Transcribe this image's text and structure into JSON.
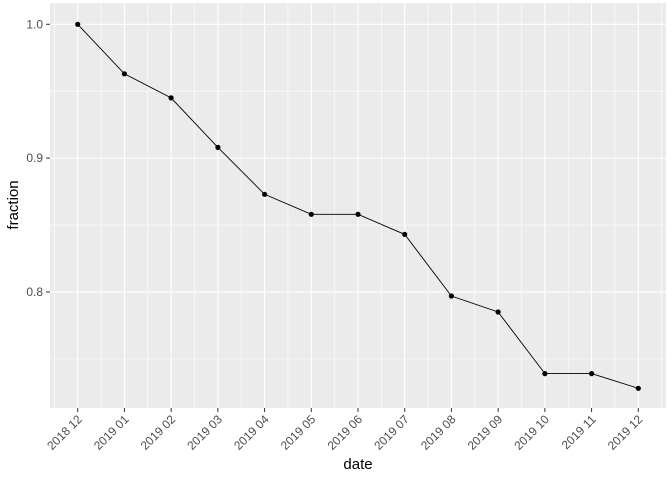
{
  "figure": {
    "background": "#FFFFFF"
  },
  "chart_data": {
    "type": "line",
    "title": "",
    "xlabel": "date",
    "ylabel": "fraction",
    "categories": [
      "2018 12",
      "2019 01",
      "2019 02",
      "2019 03",
      "2019 04",
      "2019 05",
      "2019 06",
      "2019 07",
      "2019 08",
      "2019 09",
      "2019 10",
      "2019 11",
      "2019 12"
    ],
    "values": [
      1.0,
      0.963,
      0.945,
      0.908,
      0.873,
      0.858,
      0.858,
      0.843,
      0.797,
      0.785,
      0.739,
      0.739,
      0.728
    ],
    "y_major_ticks": {
      "values": [
        1.0,
        0.9,
        0.8
      ],
      "labels": [
        "1.0",
        "0.9",
        "0.8"
      ]
    },
    "y_minor_ticks": [
      0.95,
      0.85,
      0.75
    ],
    "ylim": [
      0.7133,
      1.0159
    ],
    "x_expansion_frac": 0.045,
    "grid": "major+minor",
    "legend": "none",
    "marker": "point",
    "x_label_angle_deg": 45,
    "colors": {
      "panel_bg": "#EBEBEB",
      "grid": "#FFFFFF",
      "line": "#000000",
      "point": "#000000",
      "tick_text": "#4D4D4D",
      "tick_mark": "#333333",
      "axis_title": "#000000"
    }
  }
}
